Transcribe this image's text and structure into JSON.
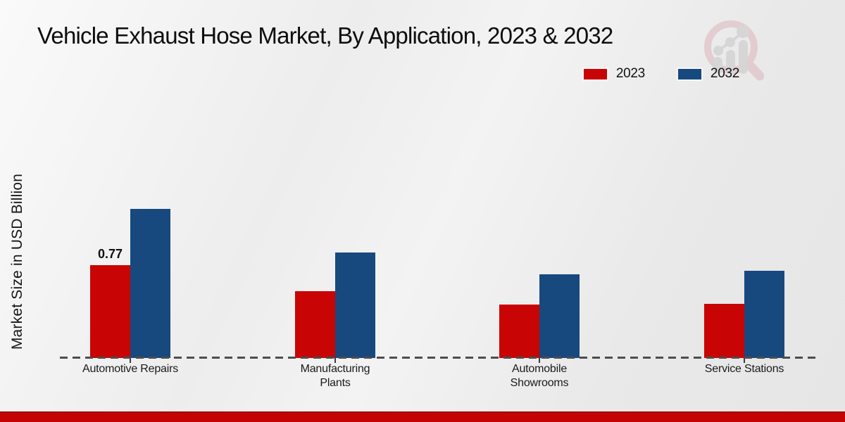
{
  "chart_data": {
    "type": "bar",
    "title": "Vehicle Exhaust Hose Market, By Application, 2023 & 2032",
    "xlabel": "",
    "ylabel": "Market Size in USD Billion",
    "categories": [
      "Automotive Repairs",
      "Manufacturing Plants",
      "Automobile Showrooms",
      "Service Stations"
    ],
    "series": [
      {
        "name": "2023",
        "color": "#c90404",
        "values": [
          0.77,
          0.55,
          0.44,
          0.45
        ]
      },
      {
        "name": "2032",
        "color": "#17497e",
        "values": [
          1.23,
          0.87,
          0.69,
          0.72
        ]
      }
    ],
    "annotations": [
      {
        "text": "0.77",
        "series_index": 0,
        "category_index": 0
      }
    ],
    "ylim": [
      0,
      1.45
    ],
    "grid": false,
    "legend_position": "top-right",
    "axis_style": "dashed-baseline",
    "value_unit": "USD Billion"
  },
  "icons": {
    "watermark": "magnifier-bar-chart-logo"
  },
  "colors": {
    "bar_2023": "#c90404",
    "bar_2032": "#17497e",
    "bottom_band": "#c40404",
    "baseline": "#4d4d4d",
    "background_light": "#fafafa",
    "background_dark": "#e6e6e6",
    "watermark_ring": "#ddb6bb",
    "watermark_bars": "#c6c6c6"
  }
}
